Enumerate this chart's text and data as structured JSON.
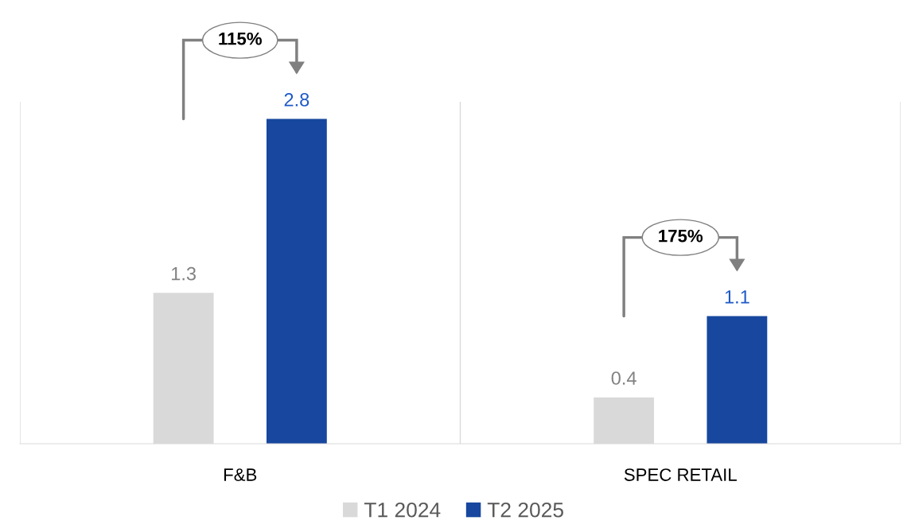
{
  "chart_data": {
    "type": "bar",
    "categories": [
      "F&B",
      "SPEC RETAIL"
    ],
    "series": [
      {
        "name": "T1 2024",
        "color": "#d9d9d9",
        "values": [
          1.3,
          0.4
        ]
      },
      {
        "name": "T2 2025",
        "color": "#17479e",
        "values": [
          2.8,
          1.1
        ]
      }
    ],
    "data_labels": true,
    "grid": "x",
    "legend": "bottom",
    "annotations": [
      "115%",
      "175%"
    ]
  }
}
